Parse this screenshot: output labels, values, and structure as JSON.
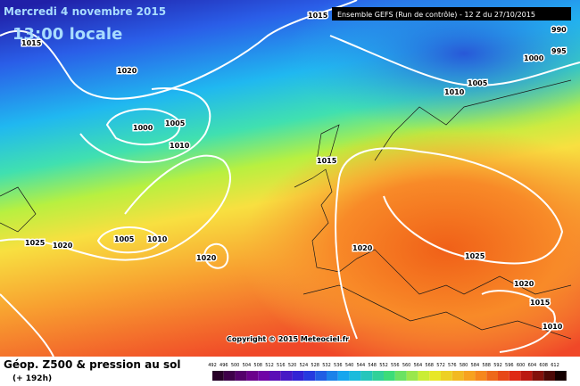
{
  "header": {
    "date": "Mercredi 4 novembre 2015",
    "time": "13:00 locale",
    "model": "Ensemble GEFS  (Run de contrôle)  - 12 Z du 27/10/2015"
  },
  "isobars": [
    "1015",
    "990",
    "995",
    "1000",
    "1015",
    "1020",
    "1000",
    "1005",
    "1010",
    "1005",
    "1010",
    "1015",
    "1025",
    "1020",
    "1005",
    "1010",
    "1020",
    "1020",
    "1025",
    "1020",
    "1015",
    "1010"
  ],
  "copyright": "Copyright © 2015 Meteociel.fr",
  "footer": {
    "title": "Géop. Z500 & pression au sol",
    "lead": "(+ 192h)"
  },
  "scale": [
    492,
    496,
    500,
    504,
    508,
    512,
    516,
    520,
    524,
    528,
    532,
    536,
    540,
    544,
    548,
    552,
    556,
    560,
    564,
    568,
    572,
    576,
    580,
    584,
    588,
    592,
    596,
    600,
    604,
    608,
    612
  ]
}
